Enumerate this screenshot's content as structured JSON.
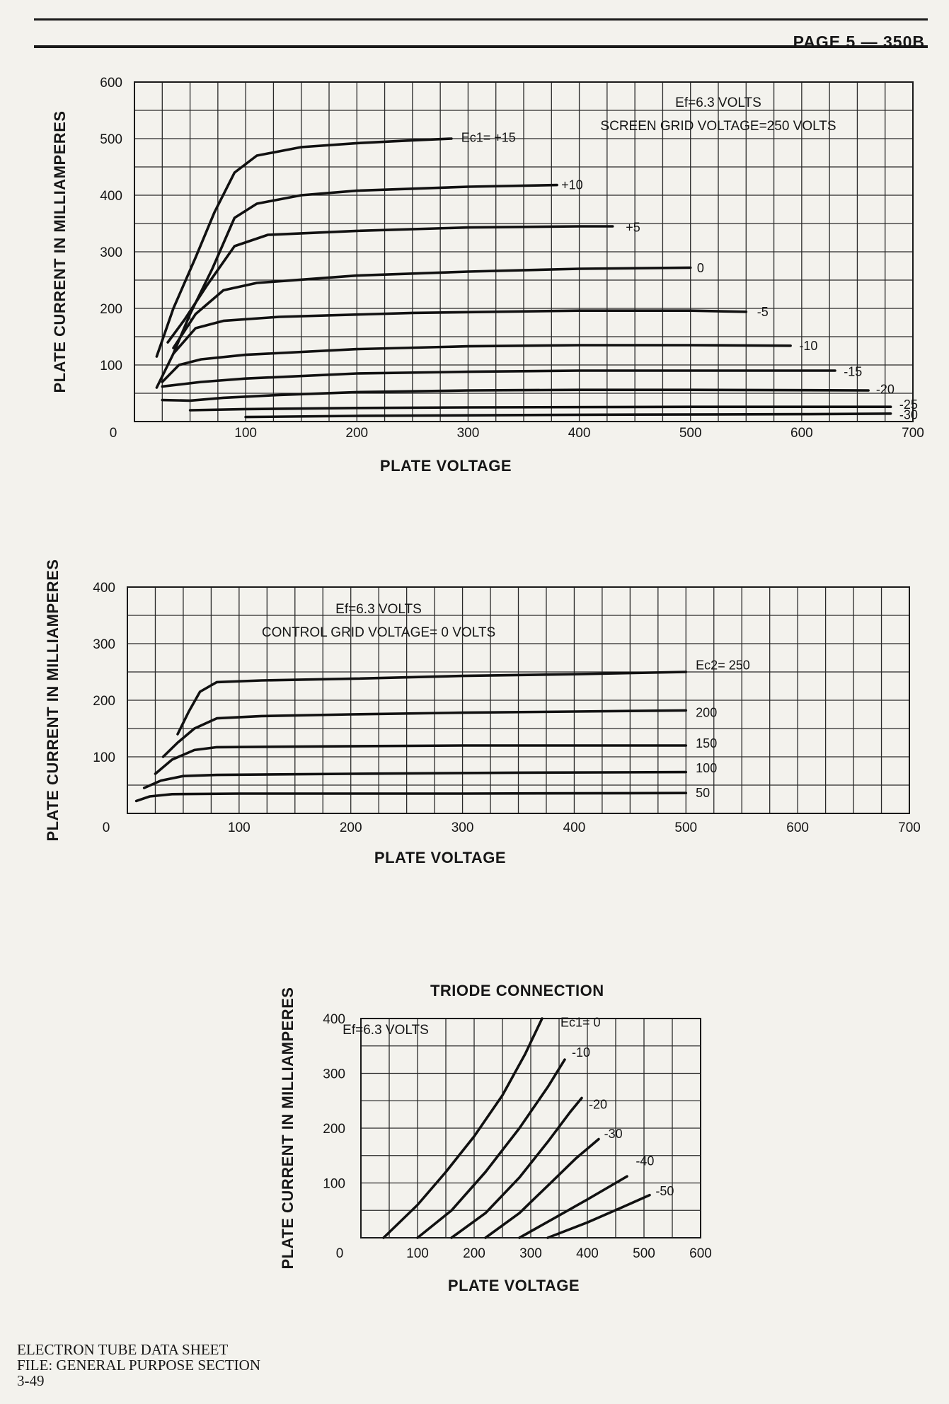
{
  "header": {
    "page": "PAGE 5 — 350B"
  },
  "footer": {
    "line1": "ELECTRON TUBE DATA SHEET",
    "line2": "FILE: GENERAL PURPOSE SECTION",
    "line3": "3-49"
  },
  "chart_data": [
    {
      "type": "line",
      "title": "",
      "xlabel": "PLATE VOLTAGE",
      "ylabel": "PLATE CURRENT IN MILLIAMPERES",
      "xlim": [
        0,
        700
      ],
      "ylim": [
        0,
        600
      ],
      "xticks": [
        "0",
        "100",
        "200",
        "300",
        "400",
        "500",
        "600",
        "700"
      ],
      "yticks": [
        "100",
        "200",
        "300",
        "400",
        "500",
        "600"
      ],
      "grid": true,
      "notes": [
        "Ef=6.3 VOLTS",
        "SCREEN GRID VOLTAGE=250 VOLTS"
      ],
      "series": [
        {
          "name": "Ec1= +15",
          "points": [
            [
              20,
              115
            ],
            [
              35,
              200
            ],
            [
              55,
              290
            ],
            [
              72,
              370
            ],
            [
              90,
              440
            ],
            [
              110,
              470
            ],
            [
              150,
              485
            ],
            [
              200,
              492
            ],
            [
              250,
              497
            ],
            [
              285,
              500
            ]
          ]
        },
        {
          "name": "+10",
          "points": [
            [
              20,
              60
            ],
            [
              35,
              120
            ],
            [
              50,
              190
            ],
            [
              70,
              270
            ],
            [
              90,
              360
            ],
            [
              110,
              385
            ],
            [
              150,
              400
            ],
            [
              200,
              408
            ],
            [
              300,
              415
            ],
            [
              380,
              418
            ]
          ]
        },
        {
          "name": "+5",
          "points": [
            [
              30,
              140
            ],
            [
              45,
              180
            ],
            [
              65,
              240
            ],
            [
              90,
              310
            ],
            [
              120,
              330
            ],
            [
              200,
              337
            ],
            [
              300,
              343
            ],
            [
              400,
              345
            ],
            [
              430,
              345
            ]
          ]
        },
        {
          "name": "0",
          "points": [
            [
              35,
              130
            ],
            [
              55,
              190
            ],
            [
              80,
              232
            ],
            [
              110,
              245
            ],
            [
              200,
              258
            ],
            [
              300,
              265
            ],
            [
              400,
              270
            ],
            [
              500,
              272
            ]
          ]
        },
        {
          "name": "-5",
          "points": [
            [
              35,
              120
            ],
            [
              55,
              165
            ],
            [
              80,
              178
            ],
            [
              130,
              185
            ],
            [
              250,
              192
            ],
            [
              400,
              196
            ],
            [
              500,
              196
            ],
            [
              550,
              194
            ]
          ]
        },
        {
          "name": "-10",
          "points": [
            [
              25,
              70
            ],
            [
              40,
              100
            ],
            [
              60,
              110
            ],
            [
              100,
              118
            ],
            [
              200,
              128
            ],
            [
              300,
              133
            ],
            [
              400,
              135
            ],
            [
              500,
              135
            ],
            [
              590,
              134
            ]
          ]
        },
        {
          "name": "-15",
          "points": [
            [
              25,
              62
            ],
            [
              60,
              70
            ],
            [
              100,
              76
            ],
            [
              200,
              85
            ],
            [
              300,
              88
            ],
            [
              400,
              90
            ],
            [
              500,
              90
            ],
            [
              630,
              90
            ]
          ]
        },
        {
          "name": "-20",
          "points": [
            [
              25,
              38
            ],
            [
              50,
              37
            ],
            [
              80,
              42
            ],
            [
              130,
              47
            ],
            [
              200,
              52
            ],
            [
              300,
              55
            ],
            [
              400,
              56
            ],
            [
              500,
              56
            ],
            [
              660,
              55
            ]
          ]
        },
        {
          "name": "-25",
          "points": [
            [
              50,
              20
            ],
            [
              100,
              22
            ],
            [
              200,
              24
            ],
            [
              300,
              25
            ],
            [
              500,
              26
            ],
            [
              680,
              26
            ]
          ]
        },
        {
          "name": "-30",
          "points": [
            [
              100,
              8
            ],
            [
              200,
              10
            ],
            [
              400,
              12
            ],
            [
              600,
              13
            ],
            [
              680,
              14
            ]
          ]
        }
      ]
    },
    {
      "type": "line",
      "title": "",
      "xlabel": "PLATE VOLTAGE",
      "ylabel": "PLATE CURRENT IN MILLIAMPERES",
      "xlim": [
        0,
        700
      ],
      "ylim": [
        0,
        400
      ],
      "xticks": [
        "0",
        "100",
        "200",
        "300",
        "400",
        "500",
        "600",
        "700"
      ],
      "yticks": [
        "100",
        "200",
        "300",
        "400"
      ],
      "grid": true,
      "notes": [
        "Ef=6.3 VOLTS",
        "CONTROL GRID VOLTAGE= 0 VOLTS"
      ],
      "series": [
        {
          "name": "Ec2= 250",
          "points": [
            [
              45,
              140
            ],
            [
              55,
              180
            ],
            [
              65,
              215
            ],
            [
              80,
              232
            ],
            [
              120,
              235
            ],
            [
              200,
              238
            ],
            [
              300,
              243
            ],
            [
              400,
              246
            ],
            [
              500,
              250
            ]
          ]
        },
        {
          "name": "200",
          "points": [
            [
              32,
              100
            ],
            [
              45,
              125
            ],
            [
              60,
              150
            ],
            [
              80,
              168
            ],
            [
              120,
              172
            ],
            [
              200,
              175
            ],
            [
              300,
              178
            ],
            [
              400,
              180
            ],
            [
              500,
              182
            ]
          ]
        },
        {
          "name": "150",
          "points": [
            [
              25,
              70
            ],
            [
              40,
              95
            ],
            [
              60,
              112
            ],
            [
              80,
              117
            ],
            [
              150,
              118
            ],
            [
              300,
              120
            ],
            [
              500,
              120
            ]
          ]
        },
        {
          "name": "100",
          "points": [
            [
              15,
              45
            ],
            [
              30,
              58
            ],
            [
              50,
              66
            ],
            [
              80,
              68
            ],
            [
              200,
              70
            ],
            [
              350,
              72
            ],
            [
              500,
              73
            ]
          ]
        },
        {
          "name": "50",
          "points": [
            [
              8,
              22
            ],
            [
              20,
              30
            ],
            [
              40,
              34
            ],
            [
              100,
              35
            ],
            [
              300,
              35
            ],
            [
              500,
              36
            ]
          ]
        }
      ]
    },
    {
      "type": "line",
      "title": "TRIODE CONNECTION",
      "xlabel": "PLATE VOLTAGE",
      "ylabel": "PLATE CURRENT IN MILLIAMPERES",
      "xlim": [
        0,
        600
      ],
      "ylim": [
        0,
        400
      ],
      "xticks": [
        "0",
        "100",
        "200",
        "300",
        "400",
        "500",
        "600"
      ],
      "yticks": [
        "100",
        "200",
        "300",
        "400"
      ],
      "grid": true,
      "notes": [
        "Ef=6.3 VOLTS"
      ],
      "series": [
        {
          "name": "Ec1= 0",
          "points": [
            [
              40,
              0
            ],
            [
              100,
              60
            ],
            [
              150,
              120
            ],
            [
              200,
              185
            ],
            [
              250,
              260
            ],
            [
              290,
              335
            ],
            [
              320,
              400
            ]
          ]
        },
        {
          "name": "-10",
          "points": [
            [
              100,
              0
            ],
            [
              160,
              50
            ],
            [
              220,
              120
            ],
            [
              280,
              200
            ],
            [
              330,
              275
            ],
            [
              360,
              325
            ]
          ]
        },
        {
          "name": "-20",
          "points": [
            [
              160,
              0
            ],
            [
              220,
              45
            ],
            [
              280,
              110
            ],
            [
              330,
              175
            ],
            [
              370,
              230
            ],
            [
              390,
              255
            ]
          ]
        },
        {
          "name": "-30",
          "points": [
            [
              220,
              0
            ],
            [
              280,
              45
            ],
            [
              330,
              95
            ],
            [
              380,
              145
            ],
            [
              420,
              180
            ]
          ]
        },
        {
          "name": "-40",
          "points": [
            [
              280,
              0
            ],
            [
              340,
              35
            ],
            [
              400,
              70
            ],
            [
              450,
              100
            ],
            [
              470,
              112
            ]
          ]
        },
        {
          "name": "-50",
          "points": [
            [
              330,
              0
            ],
            [
              400,
              28
            ],
            [
              460,
              55
            ],
            [
              510,
              78
            ]
          ]
        }
      ]
    }
  ]
}
